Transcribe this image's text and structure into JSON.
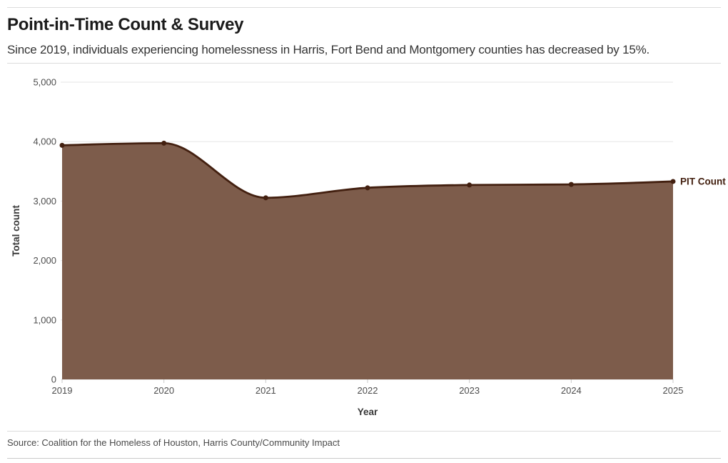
{
  "header": {
    "title": "Point-in-Time Count & Survey",
    "subtitle": "Since 2019, individuals experiencing homelessness in Harris, Fort Bend and Montgomery counties has decreased by 15%."
  },
  "footer": {
    "source": "Source: Coalition for the Homeless of Houston, Harris County/Community Impact"
  },
  "chart_data": {
    "type": "area",
    "title": "Point-in-Time Count & Survey",
    "subtitle": "Since 2019, individuals experiencing homelessness in Harris, Fort Bend and Montgomery counties has decreased by 15%.",
    "x": [
      2019,
      2020,
      2021,
      2022,
      2023,
      2024,
      2025
    ],
    "x_labels": [
      "2019",
      "2020",
      "2021",
      "2022",
      "2023",
      "2024",
      "2025"
    ],
    "series": [
      {
        "name": "PIT Count",
        "values": [
          3938,
          3974,
          3055,
          3223,
          3270,
          3280,
          3330
        ]
      }
    ],
    "xlabel": "Year",
    "ylabel": "Total count",
    "ylim": [
      0,
      5000
    ],
    "yticks": [
      0,
      1000,
      2000,
      3000,
      4000,
      5000
    ],
    "ytick_labels": [
      "0",
      "1,000",
      "2,000",
      "3,000",
      "4,000",
      "5,000"
    ],
    "grid": "horizontal",
    "legend_position": "inline-end-of-line",
    "series_end_label": "PIT Count",
    "colors": {
      "line": "#432010",
      "fill": "#7d5c4b",
      "marker": "#432010",
      "grid": "#e6e6e6",
      "tick": "#c9c9c9",
      "axis_text": "#4d4d4d",
      "axis_title": "#383838",
      "series_label": "#432010"
    }
  }
}
